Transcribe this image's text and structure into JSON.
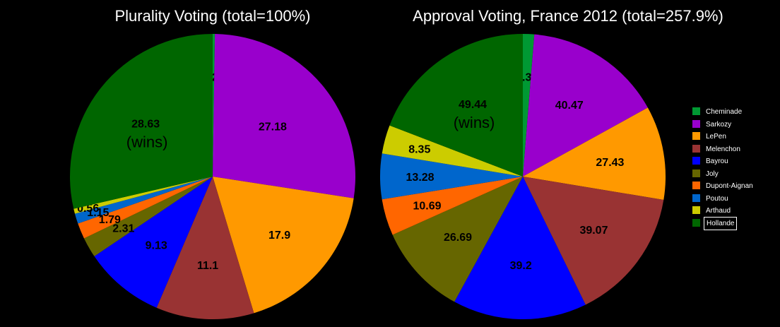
{
  "colors": {
    "Cheminade": "#009933",
    "Sarkozy": "#9900cc",
    "LePen": "#ff9900",
    "Melenchon": "#993333",
    "Bayrou": "#0000ff",
    "Joly": "#666600",
    "Dupont-Aignan": "#ff6600",
    "Poutou": "#0066cc",
    "Arthaud": "#cccc00",
    "Hollande": "#006600"
  },
  "legend": {
    "items": [
      "Cheminade",
      "Sarkozy",
      "LePen",
      "Melenchon",
      "Bayrou",
      "Joly",
      "Dupont-Aignan",
      "Poutou",
      "Arthaud",
      "Hollande"
    ],
    "highlighted": "Hollande"
  },
  "chart_data": [
    {
      "type": "pie",
      "title": "Plurality Voting (total=100%)",
      "labels": [
        "Cheminade",
        "Sarkozy",
        "LePen",
        "Melenchon",
        "Bayrou",
        "Joly",
        "Dupont-Aignan",
        "Poutou",
        "Arthaud",
        "Hollande"
      ],
      "values": [
        0.25,
        27.18,
        17.9,
        11.1,
        9.13,
        2.31,
        1.79,
        1.15,
        0.56,
        28.63
      ],
      "value_labels": [
        "0.25",
        "27.18",
        "17.9",
        "11.1",
        "9.13",
        "2.31",
        "1.79",
        "1.15",
        "0.56",
        "28.63"
      ],
      "winner": "Hollande",
      "winner_note": "(wins)"
    },
    {
      "type": "pie",
      "title": "Approval Voting, France 2012 (total=257.9%)",
      "labels": [
        "Cheminade",
        "Sarkozy",
        "LePen",
        "Melenchon",
        "Bayrou",
        "Joly",
        "Dupont-Aignan",
        "Poutou",
        "Arthaud",
        "Hollande"
      ],
      "values": [
        3.32,
        40.47,
        27.43,
        39.07,
        39.2,
        26.69,
        10.69,
        13.28,
        8.35,
        49.44
      ],
      "value_labels": [
        "3.32",
        "40.47",
        "27.43",
        "39.07",
        "39.2",
        "26.69",
        "10.69",
        "13.28",
        "8.35",
        "49.44"
      ],
      "winner": "Hollande",
      "winner_note": "(wins)"
    }
  ]
}
